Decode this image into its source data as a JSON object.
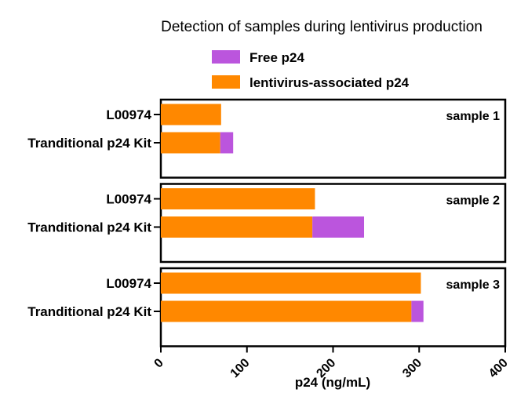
{
  "chart_data": {
    "type": "bar",
    "orientation": "horizontal",
    "stacked": true,
    "title": "Detection of samples during lentivirus production",
    "xlabel": "p24 (ng/mL)",
    "xlim": [
      0,
      400
    ],
    "xticks": [
      "0",
      "100",
      "200",
      "300",
      "400"
    ],
    "grid": false,
    "legend_position": "top",
    "series": [
      {
        "name": "Free p24",
        "color": "#bb55dd"
      },
      {
        "name": "lentivirus-associated p24",
        "color": "#ff8800"
      }
    ],
    "panels": [
      {
        "label": "sample 1",
        "bars": [
          {
            "category": "L00974",
            "values": [
              0,
              70
            ]
          },
          {
            "category": "Tranditional p24 Kit",
            "values": [
              15,
              69
            ]
          }
        ]
      },
      {
        "label": "sample 2",
        "bars": [
          {
            "category": "L00974",
            "values": [
              0,
              179
            ]
          },
          {
            "category": "Tranditional p24 Kit",
            "values": [
              60,
              176
            ]
          }
        ]
      },
      {
        "label": "sample 3",
        "bars": [
          {
            "category": "L00974",
            "values": [
              0,
              302
            ]
          },
          {
            "category": "Tranditional p24 Kit",
            "values": [
              14,
              291
            ]
          }
        ]
      }
    ]
  }
}
